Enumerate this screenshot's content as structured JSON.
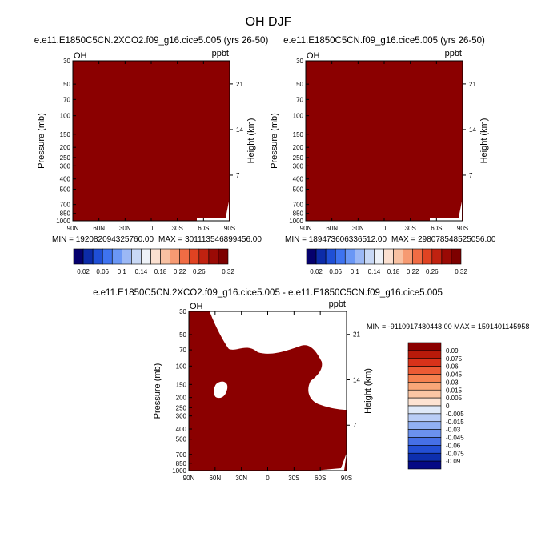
{
  "figure": {
    "title": "OH DJF"
  },
  "colors": {
    "fill_dark_red": "#8b0000",
    "background": "#ffffff",
    "axis": "#000000"
  },
  "chart_data": [
    {
      "type": "heatmap",
      "title": "e.e11.E1850C5CN.2XCO2.f09_g16.cice5.005 (yrs 26-50)",
      "corner_left": "OH",
      "corner_right": "ppbt",
      "xlabel": "",
      "ylabel": "Pressure (mb)",
      "ylabel_right": "Height (km)",
      "x_ticks": [
        "90N",
        "60N",
        "30N",
        "0",
        "30S",
        "60S",
        "90S"
      ],
      "y_ticks": [
        "30",
        "50",
        "70",
        "100",
        "150",
        "200",
        "250",
        "300",
        "400",
        "500",
        "700",
        "850",
        "1000"
      ],
      "y_ticks_right": [
        "21",
        "14",
        "7"
      ],
      "min_label": "MIN = 192082094325760.00",
      "max_label": "MAX = 301113546899456.00",
      "colorbar_labels": [
        "0.02",
        "0.06",
        "0.1",
        "0.14",
        "0.18",
        "0.22",
        "0.26",
        "0.32"
      ],
      "colorbar_colors": [
        "#05006d",
        "#0c2ba8",
        "#1f4fd6",
        "#3e73f0",
        "#6a97f5",
        "#9bb8f5",
        "#c8d8f5",
        "#eef2f8",
        "#fbe0d0",
        "#f8c1a2",
        "#f69a72",
        "#f06c44",
        "#e04322",
        "#c02210",
        "#9a0a05",
        "#7d0000"
      ]
    },
    {
      "type": "heatmap",
      "title": "e.e11.E1850C5CN.f09_g16.cice5.005 (yrs 26-50)",
      "corner_left": "OH",
      "corner_right": "ppbt",
      "xlabel": "",
      "ylabel": "Pressure (mb)",
      "ylabel_right": "Height (km)",
      "x_ticks": [
        "90N",
        "60N",
        "30N",
        "0",
        "30S",
        "60S",
        "90S"
      ],
      "y_ticks": [
        "30",
        "50",
        "70",
        "100",
        "150",
        "200",
        "250",
        "300",
        "400",
        "500",
        "700",
        "850",
        "1000"
      ],
      "y_ticks_right": [
        "21",
        "14",
        "7"
      ],
      "min_label": "MIN = 189473606336512.00",
      "max_label": "MAX = 298078548525056.00",
      "colorbar_labels": [
        "0.02",
        "0.06",
        "0.1",
        "0.14",
        "0.18",
        "0.22",
        "0.26",
        "0.32"
      ],
      "colorbar_colors": [
        "#05006d",
        "#0c2ba8",
        "#1f4fd6",
        "#3e73f0",
        "#6a97f5",
        "#9bb8f5",
        "#c8d8f5",
        "#eef2f8",
        "#fbe0d0",
        "#f8c1a2",
        "#f69a72",
        "#f06c44",
        "#e04322",
        "#c02210",
        "#9a0a05",
        "#7d0000"
      ]
    },
    {
      "type": "heatmap",
      "title": "e.e11.E1850C5CN.2XCO2.f09_g16.cice5.005 - e.e11.E1850C5CN.f09_g16.cice5.005",
      "corner_left": "OH",
      "corner_right": "ppbt",
      "xlabel": "",
      "ylabel": "Pressure (mb)",
      "ylabel_right": "Height (km)",
      "x_ticks": [
        "90N",
        "60N",
        "30N",
        "0",
        "30S",
        "60S",
        "90S"
      ],
      "y_ticks": [
        "30",
        "50",
        "70",
        "100",
        "150",
        "200",
        "250",
        "300",
        "400",
        "500",
        "700",
        "850",
        "1000"
      ],
      "y_ticks_right": [
        "21",
        "14",
        "7"
      ],
      "minmax_label": "MIN = -9110917480448.00  MAX = 1591401145958",
      "colorbar_labels": [
        "0.09",
        "0.075",
        "0.06",
        "0.045",
        "0.03",
        "0.015",
        "0.005",
        "0",
        "-0.005",
        "-0.015",
        "-0.03",
        "-0.045",
        "-0.06",
        "-0.075",
        "-0.09"
      ],
      "colorbar_colors": [
        "#8b0000",
        "#b81a0a",
        "#d8321a",
        "#ec5a34",
        "#f68150",
        "#f9a678",
        "#fbc6a4",
        "#fde3d2",
        "#dfe9f8",
        "#b9cdf6",
        "#91b0f2",
        "#6b91ee",
        "#4670e6",
        "#234fd4",
        "#0d2fae",
        "#050a85"
      ]
    }
  ]
}
